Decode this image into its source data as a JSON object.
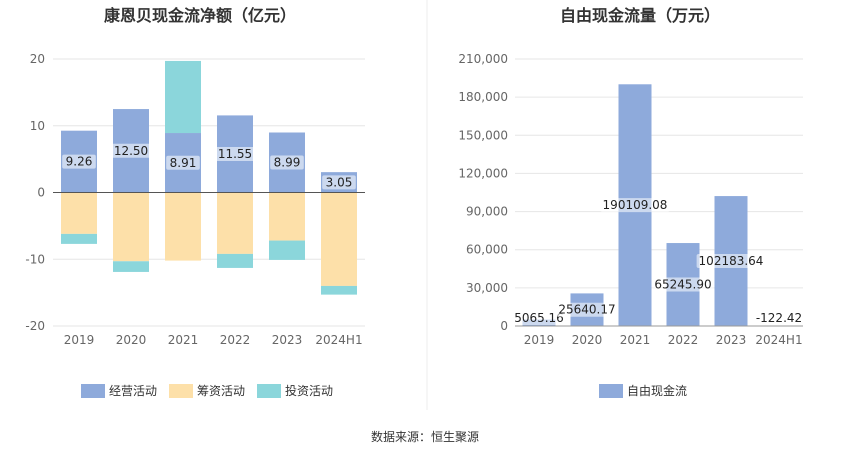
{
  "chart_data": [
    {
      "type": "bar",
      "stacked": true,
      "title": "康恩贝现金流净额（亿元）",
      "categories": [
        "2019",
        "2020",
        "2021",
        "2022",
        "2023",
        "2024H1"
      ],
      "ylim": [
        -20,
        20
      ],
      "yticks": [
        "20",
        "10",
        "0",
        "-10",
        "-20"
      ],
      "grid": true,
      "legend_position": "bottom",
      "series": [
        {
          "name": "经营活动",
          "color": "#8eaadb",
          "values": [
            9.26,
            12.5,
            8.91,
            11.55,
            8.99,
            3.05
          ],
          "labels": [
            "9.26",
            "12.50",
            "8.91",
            "11.55",
            "8.99",
            "3.05"
          ]
        },
        {
          "name": "筹资活动",
          "color": "#fde0a9",
          "values": [
            -6.2,
            -10.3,
            -10.2,
            -9.2,
            -7.2,
            -14.0
          ]
        },
        {
          "name": "投资活动",
          "color": "#8bd6db",
          "values": [
            -1.5,
            -1.6,
            10.8,
            -2.1,
            -2.9,
            -1.3
          ]
        }
      ]
    },
    {
      "type": "bar",
      "title": "自由现金流量（万元）",
      "categories": [
        "2019",
        "2020",
        "2021",
        "2022",
        "2023",
        "2024H1"
      ],
      "ylim": [
        0,
        210000
      ],
      "yticks": [
        "210,000",
        "180,000",
        "150,000",
        "120,000",
        "90,000",
        "60,000",
        "30,000",
        "0"
      ],
      "grid": true,
      "legend_position": "bottom",
      "series": [
        {
          "name": "自由现金流",
          "color": "#8eaadb",
          "values": [
            5065.16,
            25640.17,
            190109.08,
            65245.9,
            102183.64,
            -122.42
          ],
          "labels": [
            "5065.16",
            "25640.17",
            "190109.08",
            "65245.90",
            "102183.64",
            "-122.42"
          ]
        }
      ]
    }
  ],
  "source_text": "数据来源：恒生聚源"
}
